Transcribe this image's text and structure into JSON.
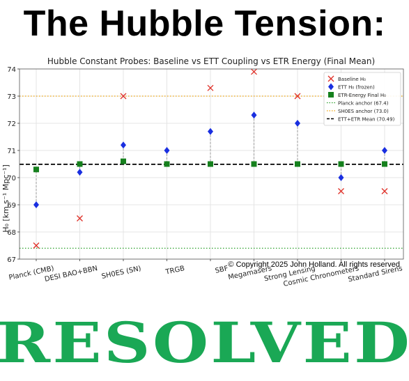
{
  "headline": "The Hubble Tension:",
  "footer_word": "RESOLVED",
  "footer_color": "#1aa855",
  "copyright": "© Copyright 2025 John Holland.  All rights reserved",
  "chart_data": {
    "type": "scatter",
    "title": "Hubble Constant Probes: Baseline vs ETT Coupling vs ETR Energy (Final Mean)",
    "ylabel": "H₀ [km s⁻¹ Mpc⁻¹]",
    "xlabel": "",
    "ylim": [
      67,
      74
    ],
    "yticks": [
      67,
      68,
      69,
      70,
      71,
      72,
      73,
      74
    ],
    "grid": true,
    "legend_position": "top-right",
    "categories": [
      "Planck (CMB)",
      "DESI BAO+BBN",
      "SH0ES (SN)",
      "TRGB",
      "SBF",
      "Megamasers",
      "Strong Lensing",
      "Cosmic Chronometers",
      "Standard Sirens"
    ],
    "series": [
      {
        "name": "Baseline H₀",
        "marker": "x",
        "color": "#e0322a",
        "values": [
          67.5,
          68.5,
          73.0,
          null,
          73.3,
          73.9,
          73.0,
          69.5,
          69.5
        ]
      },
      {
        "name": "ETT H₀ (frozen)",
        "marker": "diamond",
        "color": "#1a2fe0",
        "values": [
          69.0,
          70.2,
          71.2,
          71.0,
          71.7,
          72.3,
          72.0,
          70.0,
          71.0
        ]
      },
      {
        "name": "ETR-Energy Final H₀",
        "marker": "square",
        "color": "#15801d",
        "values": [
          70.3,
          70.5,
          70.6,
          70.5,
          70.5,
          70.5,
          70.5,
          70.5,
          70.5
        ]
      }
    ],
    "reference_lines": [
      {
        "name": "Planck anchor (67.4)",
        "value": 67.4,
        "style": "dotted",
        "color": "#2ca02c"
      },
      {
        "name": "SH0ES anchor (73.0)",
        "value": 73.0,
        "style": "dotted",
        "color": "#f0a30a"
      },
      {
        "name": "ETT+ETR Mean (70.49)",
        "value": 70.49,
        "style": "dashed",
        "color": "#000000"
      }
    ]
  }
}
